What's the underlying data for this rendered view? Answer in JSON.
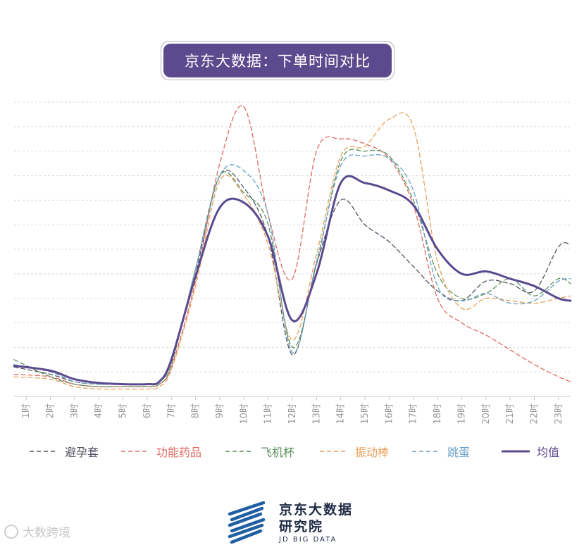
{
  "header": {
    "title": "京东大数据：下单时间对比"
  },
  "chart_data": {
    "type": "line",
    "title": "京东大数据：下单时间对比",
    "xlabel": "",
    "ylabel": "",
    "categories": [
      "1时",
      "2时",
      "3时",
      "4时",
      "5时",
      "6时",
      "7时",
      "8时",
      "9时",
      "10时",
      "11时",
      "12时",
      "13时",
      "14时",
      "15时",
      "16时",
      "17时",
      "18时",
      "19时",
      "20时",
      "21时",
      "22时",
      "23时"
    ],
    "x_start": 0.5,
    "x_end": 23.5,
    "ylim": [
      0,
      12
    ],
    "grid": "horizontal-dashed",
    "legend_position": "bottom",
    "series": [
      {
        "name": "避孕套",
        "color": "#555566",
        "dash": "dashed",
        "width": 1.3,
        "points": [
          [
            0.5,
            1.2
          ],
          [
            2,
            0.9
          ],
          [
            3,
            0.6
          ],
          [
            4,
            0.5
          ],
          [
            5,
            0.5
          ],
          [
            6,
            0.5
          ],
          [
            6.5,
            0.6
          ],
          [
            7,
            1.4
          ],
          [
            8,
            5.0
          ],
          [
            9,
            9.0
          ],
          [
            10,
            8.5
          ],
          [
            11,
            6.5
          ],
          [
            12,
            1.7
          ],
          [
            13,
            5.4
          ],
          [
            14,
            8.0
          ],
          [
            15,
            7.0
          ],
          [
            16,
            6.3
          ],
          [
            17,
            5.3
          ],
          [
            18,
            4.3
          ],
          [
            19,
            3.9
          ],
          [
            20,
            4.7
          ],
          [
            21,
            4.6
          ],
          [
            22,
            4.3
          ],
          [
            23,
            6.1
          ],
          [
            23.5,
            6.2
          ]
        ]
      },
      {
        "name": "功能药品",
        "color": "#e06a60",
        "dash": "dashed",
        "width": 1.3,
        "points": [
          [
            0.5,
            0.9
          ],
          [
            2,
            0.8
          ],
          [
            3,
            0.5
          ],
          [
            4,
            0.4
          ],
          [
            5,
            0.4
          ],
          [
            6,
            0.4
          ],
          [
            6.5,
            0.5
          ],
          [
            7,
            1.2
          ],
          [
            8,
            4.7
          ],
          [
            9,
            9.5
          ],
          [
            10,
            11.8
          ],
          [
            11,
            7.4
          ],
          [
            12,
            4.8
          ],
          [
            13,
            10.0
          ],
          [
            14,
            10.5
          ],
          [
            15,
            10.3
          ],
          [
            16,
            9.7
          ],
          [
            17,
            7.8
          ],
          [
            18,
            4.0
          ],
          [
            19,
            3.0
          ],
          [
            20,
            2.5
          ],
          [
            21,
            1.9
          ],
          [
            22,
            1.3
          ],
          [
            23,
            0.8
          ],
          [
            23.5,
            0.6
          ]
        ]
      },
      {
        "name": "飞机杯",
        "color": "#5a8f5a",
        "dash": "dashed",
        "width": 1.3,
        "points": [
          [
            0.5,
            1.5
          ],
          [
            2,
            0.8
          ],
          [
            3,
            0.5
          ],
          [
            4,
            0.4
          ],
          [
            5,
            0.4
          ],
          [
            6,
            0.4
          ],
          [
            6.5,
            0.5
          ],
          [
            7,
            1.3
          ],
          [
            8,
            5.2
          ],
          [
            9,
            9.0
          ],
          [
            10,
            8.3
          ],
          [
            11,
            7.0
          ],
          [
            12,
            2.0
          ],
          [
            13,
            5.4
          ],
          [
            14,
            9.6
          ],
          [
            15,
            10.0
          ],
          [
            16,
            9.8
          ],
          [
            17,
            8.0
          ],
          [
            18,
            5.0
          ],
          [
            19,
            4.0
          ],
          [
            20,
            4.2
          ],
          [
            21,
            4.8
          ],
          [
            22,
            4.1
          ],
          [
            23,
            4.8
          ],
          [
            23.5,
            4.6
          ]
        ]
      },
      {
        "name": "振动棒",
        "color": "#e8a15a",
        "dash": "dashed",
        "width": 1.3,
        "points": [
          [
            0.5,
            0.8
          ],
          [
            2,
            0.7
          ],
          [
            3,
            0.4
          ],
          [
            4,
            0.3
          ],
          [
            5,
            0.3
          ],
          [
            6,
            0.3
          ],
          [
            6.5,
            0.4
          ],
          [
            7,
            1.1
          ],
          [
            8,
            4.5
          ],
          [
            9,
            8.8
          ],
          [
            10,
            8.2
          ],
          [
            11,
            6.2
          ],
          [
            12,
            2.3
          ],
          [
            13,
            5.8
          ],
          [
            14,
            9.8
          ],
          [
            15,
            10.2
          ],
          [
            16,
            11.3
          ],
          [
            17,
            11.0
          ],
          [
            18,
            5.5
          ],
          [
            19,
            3.6
          ],
          [
            20,
            4.0
          ],
          [
            21,
            3.9
          ],
          [
            22,
            3.8
          ],
          [
            23,
            4.0
          ],
          [
            23.5,
            4.1
          ]
        ]
      },
      {
        "name": "跳蛋",
        "color": "#6a9fc6",
        "dash": "dashed",
        "width": 1.3,
        "points": [
          [
            0.5,
            1.3
          ],
          [
            2,
            1.0
          ],
          [
            3,
            0.6
          ],
          [
            4,
            0.5
          ],
          [
            5,
            0.5
          ],
          [
            6,
            0.5
          ],
          [
            6.5,
            0.6
          ],
          [
            7,
            1.4
          ],
          [
            8,
            5.2
          ],
          [
            9,
            9.0
          ],
          [
            10,
            9.2
          ],
          [
            11,
            7.4
          ],
          [
            12,
            1.8
          ],
          [
            13,
            5.5
          ],
          [
            14,
            9.4
          ],
          [
            15,
            9.8
          ],
          [
            16,
            9.7
          ],
          [
            17,
            8.4
          ],
          [
            18,
            4.5
          ],
          [
            19,
            3.9
          ],
          [
            20,
            4.2
          ],
          [
            21,
            3.8
          ],
          [
            22,
            3.9
          ],
          [
            23,
            4.7
          ],
          [
            23.5,
            4.8
          ]
        ]
      },
      {
        "name": "均值",
        "color": "#5b4a8f",
        "dash": "solid",
        "width": 3,
        "points": [
          [
            0.5,
            1.25
          ],
          [
            2,
            1.05
          ],
          [
            3,
            0.7
          ],
          [
            4,
            0.55
          ],
          [
            5,
            0.5
          ],
          [
            6,
            0.5
          ],
          [
            6.5,
            0.6
          ],
          [
            7,
            1.5
          ],
          [
            8,
            4.9
          ],
          [
            9,
            7.7
          ],
          [
            10,
            7.9
          ],
          [
            11,
            6.5
          ],
          [
            12,
            3.1
          ],
          [
            13,
            5.0
          ],
          [
            14,
            8.7
          ],
          [
            15,
            8.7
          ],
          [
            16,
            8.4
          ],
          [
            17,
            7.8
          ],
          [
            18,
            6.0
          ],
          [
            19,
            5.0
          ],
          [
            20,
            5.1
          ],
          [
            21,
            4.8
          ],
          [
            22,
            4.5
          ],
          [
            23,
            4.0
          ],
          [
            23.5,
            3.9
          ]
        ]
      }
    ]
  },
  "legend": {
    "items": [
      "避孕套",
      "功能药品",
      "飞机杯",
      "振动棒",
      "跳蛋",
      "均值"
    ]
  },
  "brand": {
    "line1": "京东大数据",
    "line2": "研究院",
    "line3": "JD BIG DATA",
    "logo_color": "#1f5fa3"
  },
  "watermark": {
    "text": "大数跨境"
  }
}
